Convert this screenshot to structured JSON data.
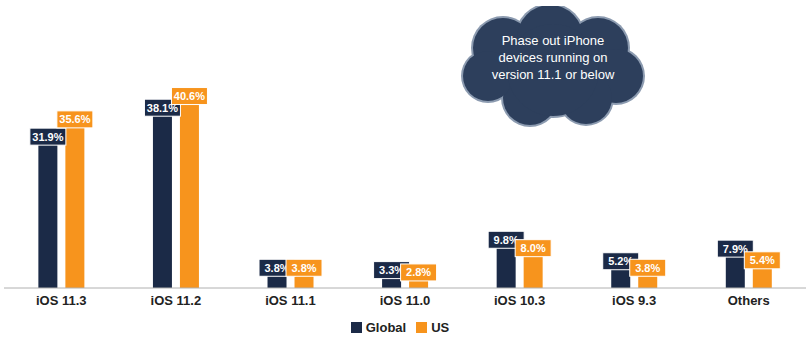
{
  "chart_data": {
    "type": "bar",
    "categories": [
      "iOS 11.3",
      "iOS 11.2",
      "iOS 11.1",
      "iOS 11.0",
      "iOS 10.3",
      "iOS 9.3",
      "Others"
    ],
    "series": [
      {
        "name": "Global",
        "color": "#1b2a47",
        "values": [
          31.9,
          38.1,
          3.8,
          3.3,
          9.8,
          5.2,
          7.9
        ],
        "value_labels": [
          "31.9%",
          "38.1%",
          "3.8%",
          "3.3%",
          "9.8%",
          "5.2%",
          "7.9%"
        ]
      },
      {
        "name": "US",
        "color": "#f7941d",
        "values": [
          35.6,
          40.6,
          3.8,
          2.8,
          8.0,
          3.8,
          5.4
        ],
        "value_labels": [
          "35.6%",
          "40.6%",
          "3.8%",
          "2.8%",
          "8.0%",
          "3.8%",
          "5.4%"
        ]
      }
    ],
    "ylim": [
      0,
      45
    ],
    "data_labels": true,
    "tick_labels": "x",
    "legend": "bottom",
    "annotation": [
      "Phase out iPhone",
      "devices running on",
      "version 11.1 or below"
    ]
  }
}
